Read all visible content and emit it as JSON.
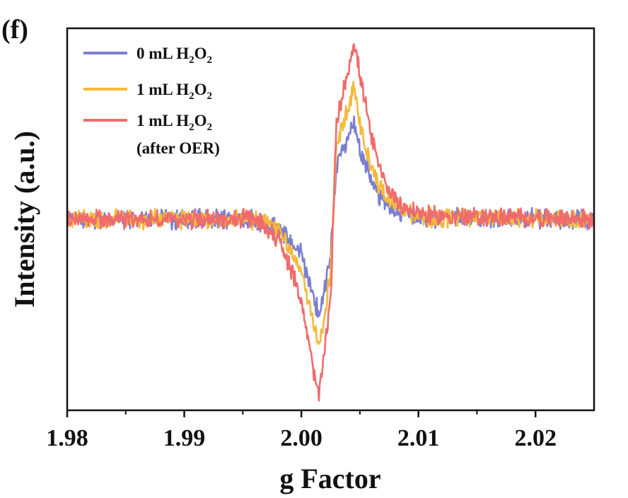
{
  "panel_label": "(f)",
  "chart_data": {
    "type": "line",
    "title": "",
    "xlabel": "g Factor",
    "ylabel": "Intensity (a.u.)",
    "xlim": [
      1.98,
      2.025
    ],
    "ylim": [
      -1.05,
      1.05
    ],
    "xticks": [
      1.98,
      1.99,
      2.0,
      2.01,
      2.02
    ],
    "xtick_labels": [
      "1.98",
      "1.99",
      "2.00",
      "2.01",
      "2.02"
    ],
    "yticks_shown": false,
    "grid": false,
    "legend_position": "top-left",
    "series": [
      {
        "legend": {
          "main": "0 mL H",
          "sub1": "2",
          "mid": "O",
          "sub2": "2",
          "extra": ""
        },
        "color": "#7b7fd0",
        "x": [
          1.98,
          1.996,
          1.998,
          2.0,
          2.001,
          2.0015,
          2.0025,
          2.003,
          2.0045,
          2.005,
          2.006,
          2.007,
          2.008,
          2.009,
          2.011,
          2.025
        ],
        "y": [
          0.0,
          0.0,
          -0.05,
          -0.2,
          -0.42,
          -0.55,
          -0.2,
          0.3,
          0.54,
          0.4,
          0.2,
          0.1,
          0.06,
          0.03,
          0.01,
          0.0
        ]
      },
      {
        "legend": {
          "main": "1 mL H",
          "sub1": "2",
          "mid": "O",
          "sub2": "2",
          "extra": ""
        },
        "color": "#f5b93a",
        "x": [
          1.98,
          1.996,
          1.998,
          2.0,
          2.001,
          2.0015,
          2.0025,
          2.003,
          2.0045,
          2.005,
          2.006,
          2.007,
          2.008,
          2.009,
          2.011,
          2.025
        ],
        "y": [
          0.0,
          0.0,
          -0.06,
          -0.28,
          -0.58,
          -0.73,
          -0.3,
          0.4,
          0.75,
          0.55,
          0.28,
          0.14,
          0.08,
          0.04,
          0.01,
          0.0
        ]
      },
      {
        "legend": {
          "main": "1 mL H",
          "sub1": "2",
          "mid": "O",
          "sub2": "2",
          "extra": "(after OER)"
        },
        "color": "#f06c6c",
        "x": [
          1.98,
          1.996,
          1.998,
          2.0,
          2.001,
          2.0015,
          2.0025,
          2.003,
          2.0045,
          2.005,
          2.006,
          2.007,
          2.008,
          2.009,
          2.011,
          2.025
        ],
        "y": [
          0.0,
          0.0,
          -0.1,
          -0.45,
          -0.85,
          -1.0,
          -0.45,
          0.55,
          1.0,
          0.82,
          0.45,
          0.22,
          0.12,
          0.06,
          0.02,
          0.0
        ]
      }
    ]
  }
}
